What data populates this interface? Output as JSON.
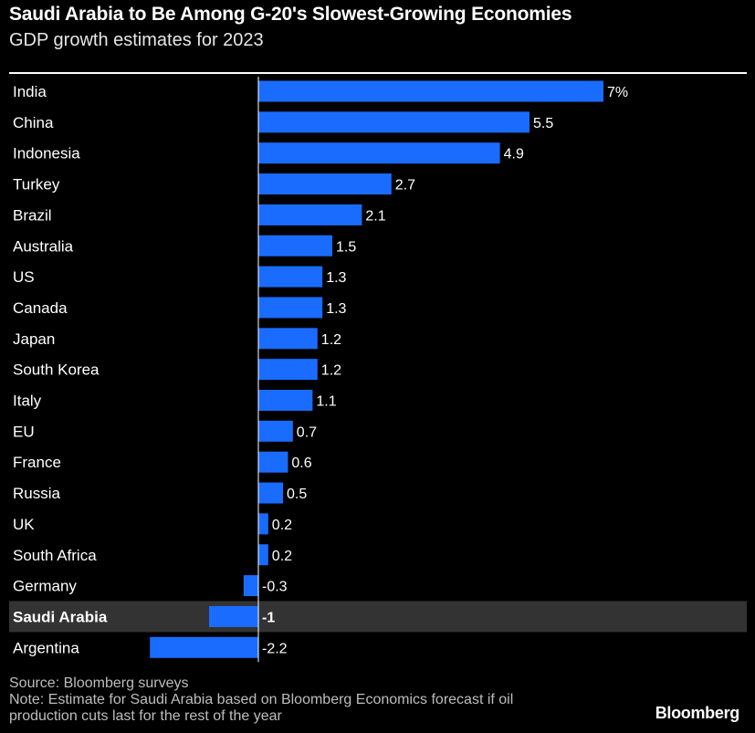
{
  "header": {
    "title": "Saudi Arabia to Be Among G-20's Slowest-Growing Economies",
    "subtitle": "GDP growth estimates for 2023"
  },
  "chart_data": {
    "type": "bar",
    "orientation": "horizontal",
    "title": "Saudi Arabia to Be Among G-20's Slowest-Growing Economies",
    "subtitle": "GDP growth estimates for 2023",
    "categories": [
      "India",
      "China",
      "Indonesia",
      "Turkey",
      "Brazil",
      "Australia",
      "US",
      "Canada",
      "Japan",
      "South Korea",
      "Italy",
      "EU",
      "France",
      "Russia",
      "UK",
      "South Africa",
      "Germany",
      "Saudi Arabia",
      "Argentina"
    ],
    "values": [
      7,
      5.5,
      4.9,
      2.7,
      2.1,
      1.5,
      1.3,
      1.3,
      1.2,
      1.2,
      1.1,
      0.7,
      0.6,
      0.5,
      0.2,
      0.2,
      -0.3,
      -1,
      -2.2
    ],
    "value_labels": [
      "7%",
      "5.5",
      "4.9",
      "2.7",
      "2.1",
      "1.5",
      "1.3",
      "1.3",
      "1.2",
      "1.2",
      "1.1",
      "0.7",
      "0.6",
      "0.5",
      "0.2",
      "0.2",
      "-0.3",
      "-1",
      "-2.2"
    ],
    "highlight": "Saudi Arabia",
    "unit": "%",
    "xlim": [
      -2.2,
      7
    ],
    "bar_color": "#1a6cff",
    "highlight_background": "#333333",
    "zero_line_color": "#ffffff"
  },
  "footer": {
    "source": "Source: Bloomberg surveys",
    "note_line1": "Note: Estimate for Saudi Arabia based on Bloomberg Economics forecast if oil",
    "note_line2": "production cuts last for the rest of the year",
    "brand": "Bloomberg"
  }
}
